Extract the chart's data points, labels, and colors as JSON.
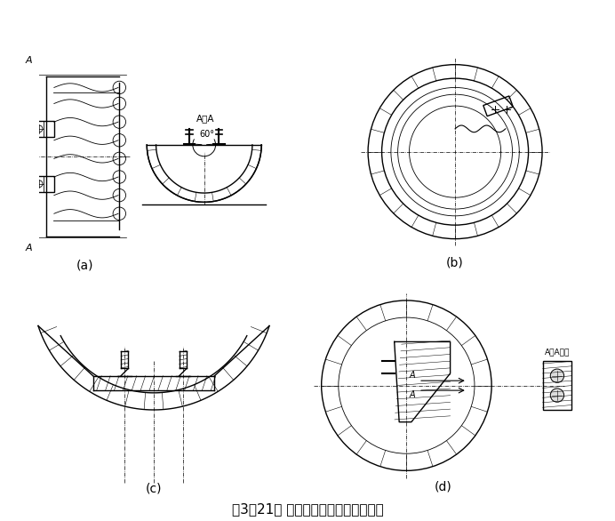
{
  "title": "图3－21　 钢丝绳在卷筒上的固定方法",
  "labels": [
    "(a)",
    "(b)",
    "(c)",
    "(d)"
  ],
  "bg_color": "#ffffff",
  "line_color": "#000000",
  "hatch_color": "#555555",
  "text_color": "#000000",
  "font_size_title": 11,
  "font_size_label": 10,
  "font_size_annot": 9
}
